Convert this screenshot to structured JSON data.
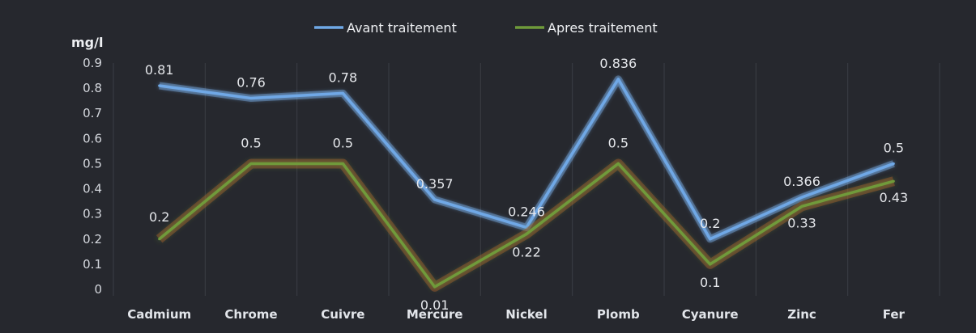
{
  "chart_data": {
    "type": "line",
    "title": "",
    "ylabel": "mg/l",
    "xlabel": "",
    "ylim": [
      0,
      0.9
    ],
    "yticks": [
      "0",
      "0.1",
      "0.2",
      "0.3",
      "0.4",
      "0.5",
      "0.6",
      "0.7",
      "0.8",
      "0.9"
    ],
    "grid": "vertical",
    "legend": "top",
    "categories": [
      "Cadmium",
      "Chrome",
      "Cuivre",
      "Mercure",
      "Nickel",
      "Plomb",
      "Cyanure",
      "Zinc",
      "Fer"
    ],
    "series": [
      {
        "name": "Avant traitement",
        "color": "#6fa8e6",
        "values": [
          0.81,
          0.76,
          0.78,
          0.357,
          0.246,
          0.836,
          0.2,
          0.366,
          0.5
        ],
        "labels": [
          "0.81",
          "0.76",
          "0.78",
          "0.357",
          "0.246",
          "0.836",
          "0.2",
          "0.366",
          "0.5"
        ]
      },
      {
        "name": "Apres traitement",
        "color": "#6f9a3a",
        "values": [
          0.2,
          0.5,
          0.5,
          0.01,
          0.22,
          0.5,
          0.1,
          0.33,
          0.43
        ],
        "labels": [
          "0.2",
          "0.5",
          "0.5",
          "0.01",
          "0.22",
          "0.5",
          "0.1",
          "0.33",
          "0.43"
        ]
      }
    ],
    "background": "#26282e",
    "gridcolor": "#3b3e45"
  }
}
